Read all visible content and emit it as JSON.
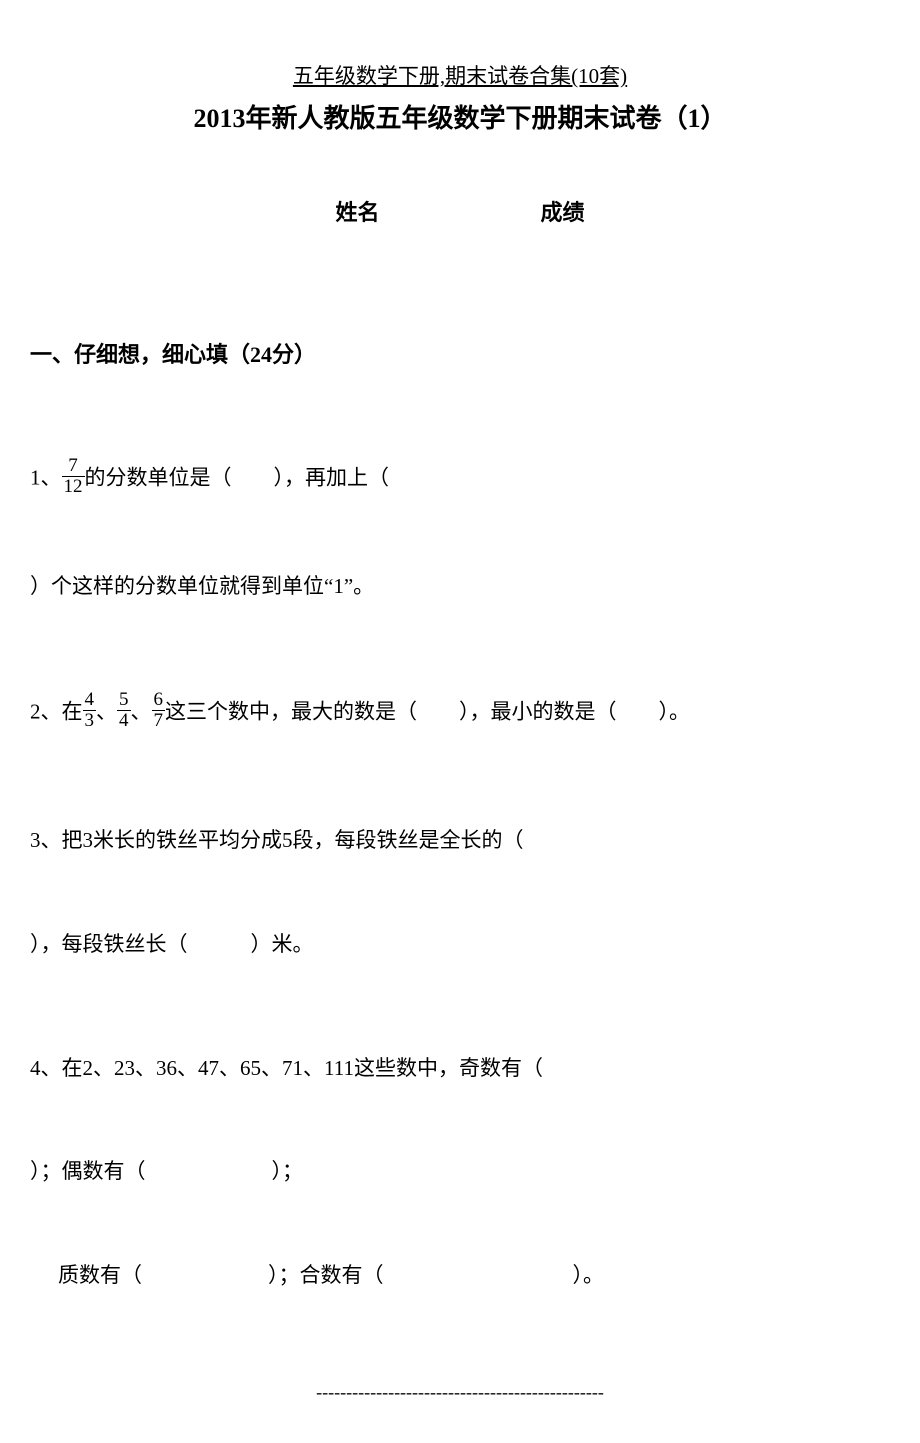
{
  "header_link": "五年级数学下册,期末试卷合集(10套)",
  "title": "2013年新人教版五年级数学下册期末试卷（1）",
  "name_label": "姓名",
  "score_label": "成绩",
  "section1": {
    "header": "一、仔细想，细心填（24分）",
    "q1": {
      "prefix": "1、",
      "frac_num": "7",
      "frac_den": "12",
      "part1": "的分数单位是（　　），再加上（",
      "part2": "）个这样的分数单位就得到单位“1”。"
    },
    "q2": {
      "prefix": "2、在",
      "f1n": "4",
      "f1d": "3",
      "sep1": "、",
      "f2n": "5",
      "f2d": "4",
      "sep2": "、",
      "f3n": "6",
      "f3d": "7",
      "tail": "这三个数中，最大的数是（　　），最小的数是（　　）。"
    },
    "q3": {
      "line1": "3、把3米长的铁丝平均分成5段，每段铁丝是全长的（",
      "line2": "），每段铁丝长（　　　）米。"
    },
    "q4": {
      "line1": "4、在2、23、36、47、65、71、111这些数中，奇数有（",
      "line2": "）；偶数有（　　　　　　）；",
      "line3": "质数有（　　　　　　）；合数有（　　　　　　　　　）。"
    }
  },
  "footer_dash": "------------------------------------------------"
}
